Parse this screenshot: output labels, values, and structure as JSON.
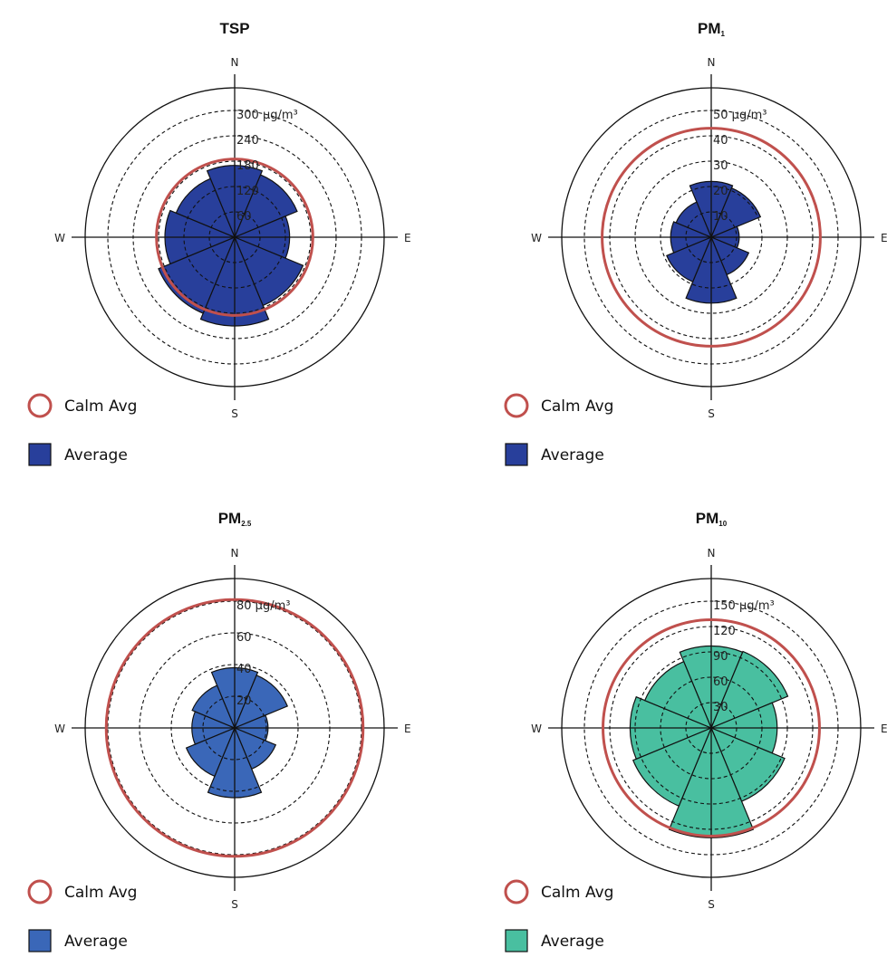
{
  "chart_data": [
    {
      "type": "polar-bar",
      "title": "TSP",
      "title_sub": "",
      "compass": {
        "n": "N",
        "e": "E",
        "s": "S",
        "w": "W"
      },
      "rmax": 300,
      "unit": "µg/m³",
      "tick_values": [
        60,
        120,
        180,
        240,
        300
      ],
      "tick_labels": [
        "60",
        "120",
        "180",
        "240",
        "300 µg/m³"
      ],
      "directions": [
        "N",
        "NE",
        "E",
        "SE",
        "S",
        "SW",
        "W",
        "NW"
      ],
      "series": [
        {
          "name": "Average",
          "values": [
            170,
            160,
            130,
            175,
            210,
            195,
            165,
            150
          ]
        }
      ],
      "calm_avg": 185,
      "colors": {
        "bar": "#283f9b",
        "calm": "#c0504d"
      },
      "legend": [
        {
          "kind": "circle",
          "label": "Calm Avg"
        },
        {
          "kind": "square",
          "label": "Average"
        }
      ]
    },
    {
      "type": "polar-bar",
      "title": "PM",
      "title_sub": "1",
      "compass": {
        "n": "N",
        "e": "E",
        "s": "S",
        "w": "W"
      },
      "rmax": 50,
      "unit": "µg/m³",
      "tick_values": [
        10,
        20,
        30,
        40,
        50
      ],
      "tick_labels": [
        "10",
        "20",
        "30",
        "40",
        "50 µg/m³"
      ],
      "directions": [
        "N",
        "NE",
        "E",
        "SE",
        "S",
        "SW",
        "W",
        "NW"
      ],
      "series": [
        {
          "name": "Average",
          "values": [
            22,
            21,
            11,
            16,
            26,
            19,
            16,
            15
          ]
        }
      ],
      "calm_avg": 43,
      "colors": {
        "bar": "#283f9b",
        "calm": "#c0504d"
      },
      "legend": [
        {
          "kind": "circle",
          "label": "Calm Avg"
        },
        {
          "kind": "square",
          "label": "Average"
        }
      ]
    },
    {
      "type": "polar-bar",
      "title": "PM",
      "title_sub": "2.5",
      "compass": {
        "n": "N",
        "e": "E",
        "s": "S",
        "w": "W"
      },
      "rmax": 80,
      "unit": "µg/m³",
      "tick_values": [
        20,
        40,
        60,
        80
      ],
      "tick_labels": [
        "20",
        "40",
        "60",
        "80 µg/m³"
      ],
      "directions": [
        "N",
        "NE",
        "E",
        "SE",
        "S",
        "SW",
        "W",
        "NW"
      ],
      "series": [
        {
          "name": "Average",
          "values": [
            38,
            36,
            21,
            28,
            44,
            33,
            27,
            29
          ]
        }
      ],
      "calm_avg": 81,
      "colors": {
        "bar": "#3a67b8",
        "calm": "#c0504d"
      },
      "legend": [
        {
          "kind": "circle",
          "label": "Calm Avg"
        },
        {
          "kind": "square",
          "label": "Average"
        }
      ]
    },
    {
      "type": "polar-bar",
      "title": "PM",
      "title_sub": "10",
      "compass": {
        "n": "N",
        "e": "E",
        "s": "S",
        "w": "W"
      },
      "rmax": 150,
      "unit": "µg/m³",
      "tick_values": [
        30,
        60,
        90,
        120,
        150
      ],
      "tick_labels": [
        "30",
        "60",
        "90",
        "120",
        "150 µg/m³"
      ],
      "directions": [
        "N",
        "NE",
        "E",
        "SE",
        "S",
        "SW",
        "W",
        "NW"
      ],
      "series": [
        {
          "name": "Average",
          "values": [
            97,
            98,
            78,
            94,
            130,
            100,
            96,
            85
          ]
        }
      ],
      "calm_avg": 128,
      "colors": {
        "bar": "#49bfa0",
        "calm": "#c0504d"
      },
      "legend": [
        {
          "kind": "circle",
          "label": "Calm Avg"
        },
        {
          "kind": "square",
          "label": "Average"
        }
      ]
    }
  ]
}
